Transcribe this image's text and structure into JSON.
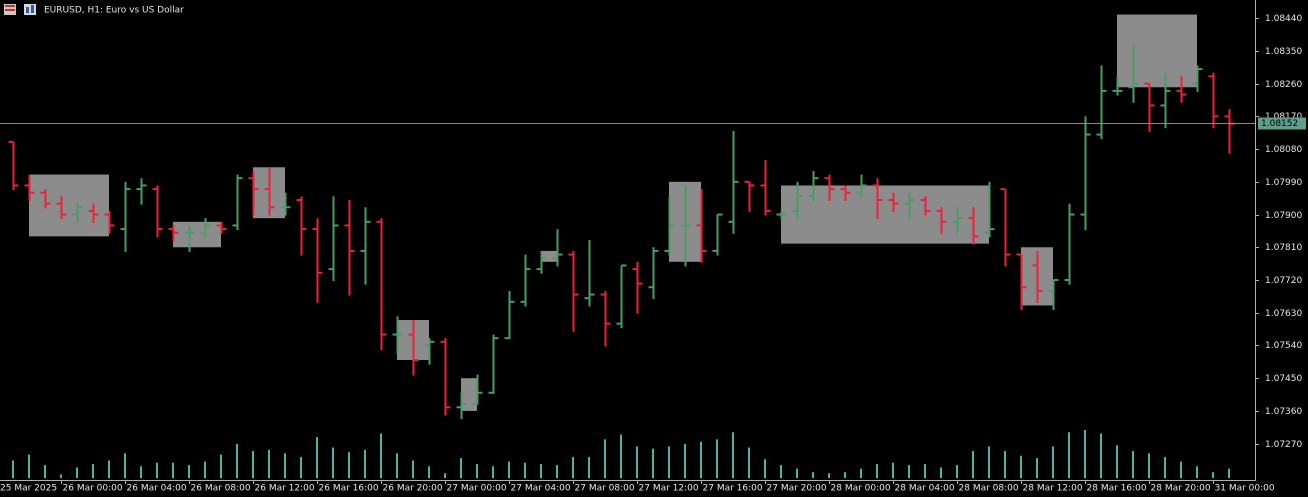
{
  "chart_data": {
    "type": "ohlc",
    "title": "EURUSD, H1:  Euro vs US Dollar",
    "open": [
      1.081,
      1.0798,
      1.0796,
      1.0793,
      1.079,
      1.0791,
      1.079,
      1.0786,
      1.0797,
      1.0797,
      1.0786,
      1.0785,
      1.0785,
      1.0787,
      1.0787,
      1.08,
      1.0797,
      1.0792,
      1.0794,
      1.0786,
      1.0775,
      1.0787,
      1.078,
      1.0788,
      1.0757,
      1.0757,
      1.0754,
      1.0755,
      1.0737,
      1.0738,
      1.0741,
      1.0756,
      1.0766,
      1.0775,
      1.0778,
      1.0779,
      1.0767,
      1.0768,
      1.076,
      1.0775,
      1.077,
      1.078,
      1.0787,
      1.0787,
      1.078,
      1.0788,
      1.0799,
      1.0798,
      1.079,
      1.0791,
      1.0795,
      1.08,
      1.0797,
      1.0796,
      1.0798,
      1.0794,
      1.0793,
      1.0794,
      1.0791,
      1.0788,
      1.0789,
      1.0785,
      1.0797,
      1.0779,
      1.0776,
      1.0769,
      1.0772,
      1.079,
      1.0812,
      1.0824,
      1.0825,
      1.0826,
      1.082,
      1.0824,
      1.0826,
      1.0828,
      1.0817
    ],
    "high": [
      1.081,
      1.0801,
      1.0797,
      1.0795,
      1.0793,
      1.0793,
      1.0791,
      1.0799,
      1.08,
      1.0798,
      1.0787,
      1.0787,
      1.0789,
      1.0788,
      1.0801,
      1.0802,
      1.0803,
      1.0796,
      1.0795,
      1.0789,
      1.0795,
      1.0794,
      1.0792,
      1.0789,
      1.0762,
      1.0761,
      1.0756,
      1.0756,
      1.0741,
      1.0746,
      1.0757,
      1.0769,
      1.0779,
      1.078,
      1.0786,
      1.078,
      1.0783,
      1.0769,
      1.0776,
      1.0777,
      1.0781,
      1.0795,
      1.0798,
      1.0797,
      1.079,
      1.0813,
      1.0799,
      1.0805,
      1.0791,
      1.0799,
      1.0802,
      1.0801,
      1.0798,
      1.0801,
      1.08,
      1.0796,
      1.0796,
      1.0795,
      1.0792,
      1.0792,
      1.0792,
      1.0799,
      1.0797,
      1.0779,
      1.078,
      1.0772,
      1.0793,
      1.0817,
      1.0831,
      1.0828,
      1.0837,
      1.0826,
      1.0829,
      1.0828,
      1.0831,
      1.0829,
      1.0819
    ],
    "low": [
      1.0797,
      1.0794,
      1.0792,
      1.0789,
      1.0788,
      1.0788,
      1.0785,
      1.078,
      1.0793,
      1.0784,
      1.0783,
      1.078,
      1.0784,
      1.0785,
      1.0786,
      1.079,
      1.079,
      1.079,
      1.0779,
      1.0766,
      1.0772,
      1.0768,
      1.0771,
      1.0753,
      1.0752,
      1.0746,
      1.0749,
      1.0735,
      1.0734,
      1.0738,
      1.0741,
      1.0756,
      1.0765,
      1.0774,
      1.0776,
      1.0758,
      1.0765,
      1.0754,
      1.0759,
      1.0763,
      1.0767,
      1.0779,
      1.0776,
      1.0777,
      1.0779,
      1.0785,
      1.0791,
      1.079,
      1.0789,
      1.0789,
      1.0794,
      1.0794,
      1.0794,
      1.0795,
      1.0789,
      1.0791,
      1.0789,
      1.079,
      1.0785,
      1.0785,
      1.0782,
      1.0784,
      1.0776,
      1.0764,
      1.0766,
      1.0764,
      1.0771,
      1.0786,
      1.0811,
      1.0823,
      1.0821,
      1.0813,
      1.0814,
      1.0821,
      1.0824,
      1.0814,
      1.0807
    ],
    "close": [
      1.0798,
      1.0796,
      1.0793,
      1.079,
      1.0792,
      1.079,
      1.0787,
      1.0797,
      1.0798,
      1.0786,
      1.0785,
      1.0785,
      1.0787,
      1.0786,
      1.08,
      1.0797,
      1.0792,
      1.0792,
      1.0786,
      1.0774,
      1.0787,
      1.078,
      1.0788,
      1.0757,
      1.0757,
      1.075,
      1.0755,
      1.0737,
      1.0738,
      1.0741,
      1.0756,
      1.0766,
      1.0775,
      1.0778,
      1.0779,
      1.0768,
      1.0768,
      1.076,
      1.0776,
      1.0771,
      1.078,
      1.0787,
      1.0787,
      1.078,
      1.079,
      1.0799,
      1.0798,
      1.0791,
      1.079,
      1.0795,
      1.08,
      1.0797,
      1.0796,
      1.0798,
      1.0794,
      1.0793,
      1.0794,
      1.0791,
      1.0788,
      1.0789,
      1.0784,
      1.0786,
      1.0779,
      1.077,
      1.0769,
      1.0772,
      1.079,
      1.0812,
      1.0824,
      1.0824,
      1.0826,
      1.082,
      1.0824,
      1.0823,
      1.083,
      1.0817,
      1.0815
    ],
    "volume": [
      1500,
      2000,
      1100,
      300,
      900,
      1200,
      1500,
      2100,
      1000,
      1300,
      1300,
      1100,
      1400,
      2000,
      2900,
      2300,
      2400,
      2100,
      1800,
      3500,
      2600,
      2200,
      2400,
      3800,
      2100,
      1500,
      1000,
      400,
      1700,
      1200,
      1000,
      1400,
      1300,
      1200,
      1100,
      1800,
      1800,
      3300,
      3700,
      2700,
      2500,
      2700,
      2900,
      3100,
      3300,
      3900,
      2600,
      1600,
      1100,
      800,
      500,
      400,
      500,
      800,
      1200,
      1300,
      1100,
      1200,
      900,
      1100,
      2300,
      2700,
      2300,
      1900,
      1700,
      2700,
      3900,
      4100,
      3800,
      2800,
      2300,
      2100,
      1800,
      1400,
      1000,
      500,
      800
    ],
    "boxes": [
      {
        "from": 1,
        "to": 6,
        "high": 1.0801,
        "low": 1.0784
      },
      {
        "from": 10,
        "to": 13,
        "high": 1.0788,
        "low": 1.0781
      },
      {
        "from": 15,
        "to": 17,
        "high": 1.0803,
        "low": 1.0789
      },
      {
        "from": 24,
        "to": 26,
        "high": 1.0761,
        "low": 1.075
      },
      {
        "from": 28,
        "to": 29,
        "high": 1.0745,
        "low": 1.0736
      },
      {
        "from": 33,
        "to": 34,
        "high": 1.078,
        "low": 1.0777
      },
      {
        "from": 41,
        "to": 43,
        "high": 1.0799,
        "low": 1.0777
      },
      {
        "from": 48,
        "to": 61,
        "high": 1.0798,
        "low": 1.0782
      },
      {
        "from": 63,
        "to": 65,
        "high": 1.0781,
        "low": 1.0765
      },
      {
        "from": 69,
        "to": 74,
        "high": 1.0845,
        "low": 1.0825
      }
    ],
    "last_price": 1.08152,
    "ylim": [
      1.0717,
      1.0849
    ],
    "yticks": [
      {
        "value": 1.0844,
        "label": "1.08440"
      },
      {
        "value": 1.0835,
        "label": "1.08350"
      },
      {
        "value": 1.0826,
        "label": "1.08260"
      },
      {
        "value": 1.0817,
        "label": "1.08170"
      },
      {
        "value": 1.0808,
        "label": "1.08080"
      },
      {
        "value": 1.0799,
        "label": "1.07990"
      },
      {
        "value": 1.079,
        "label": "1.07900"
      },
      {
        "value": 1.0781,
        "label": "1.07810"
      },
      {
        "value": 1.0772,
        "label": "1.07720"
      },
      {
        "value": 1.0763,
        "label": "1.07630"
      },
      {
        "value": 1.0754,
        "label": "1.07540"
      },
      {
        "value": 1.0745,
        "label": "1.07450"
      },
      {
        "value": 1.0736,
        "label": "1.07360"
      },
      {
        "value": 1.0727,
        "label": "1.07270"
      }
    ],
    "xticks": [
      {
        "value": -1,
        "label": "25 Mar 2025"
      },
      {
        "value": 3,
        "label": "26 Mar 00:00"
      },
      {
        "value": 7,
        "label": "26 Mar 04:00"
      },
      {
        "value": 11,
        "label": "26 Mar 08:00"
      },
      {
        "value": 15,
        "label": "26 Mar 12:00"
      },
      {
        "value": 19,
        "label": "26 Mar 16:00"
      },
      {
        "value": 23,
        "label": "26 Mar 20:00"
      },
      {
        "value": 27,
        "label": "27 Mar 00:00"
      },
      {
        "value": 31,
        "label": "27 Mar 04:00"
      },
      {
        "value": 35,
        "label": "27 Mar 08:00"
      },
      {
        "value": 39,
        "label": "27 Mar 12:00"
      },
      {
        "value": 43,
        "label": "27 Mar 16:00"
      },
      {
        "value": 47,
        "label": "27 Mar 20:00"
      },
      {
        "value": 51,
        "label": "28 Mar 00:00"
      },
      {
        "value": 55,
        "label": "28 Mar 04:00"
      },
      {
        "value": 59,
        "label": "28 Mar 08:00"
      },
      {
        "value": 63,
        "label": "28 Mar 12:00"
      },
      {
        "value": 67,
        "label": "28 Mar 16:00"
      },
      {
        "value": 71,
        "label": "28 Mar 20:00"
      },
      {
        "value": 75,
        "label": "31 Mar 00:00"
      }
    ],
    "up_color": "#4f9a6a",
    "down_color": "#e8233c",
    "volume_color": "#4fb3a9",
    "box_color": "#8c8c8c",
    "price_line_color": "#5f9e8c"
  }
}
